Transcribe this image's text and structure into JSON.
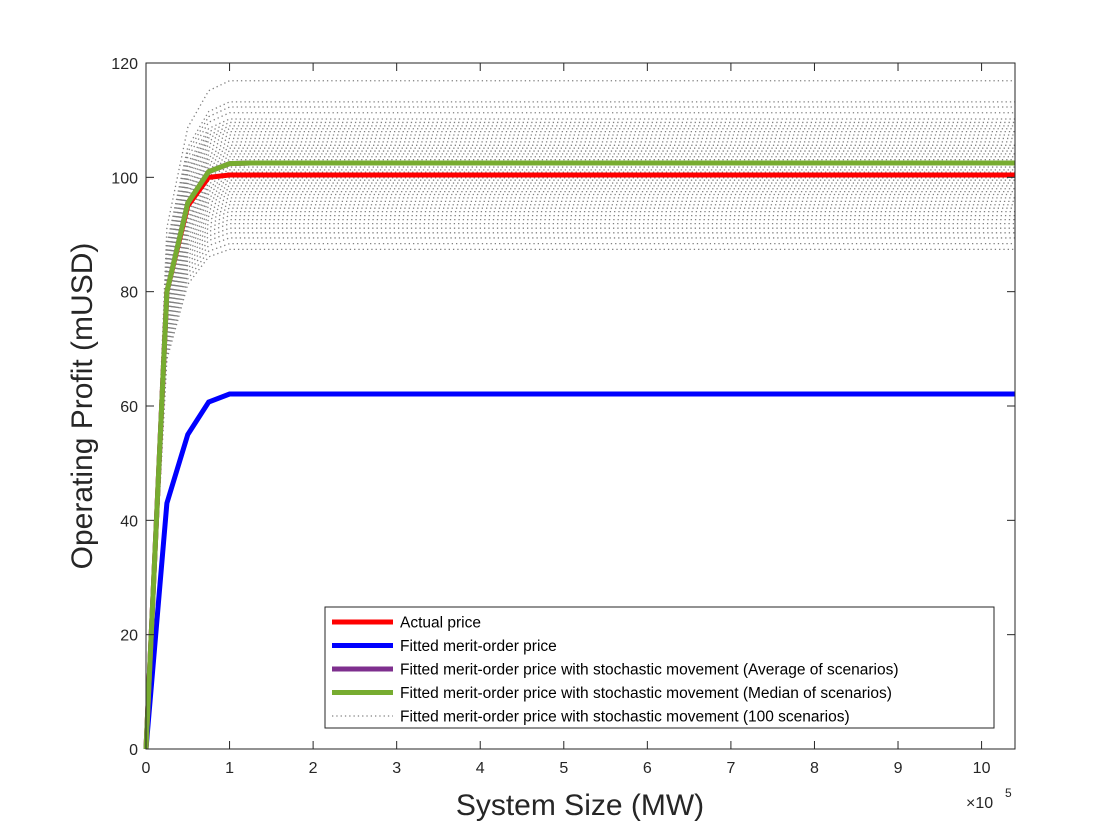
{
  "chart_data": {
    "type": "line",
    "xlabel": "System Size (MW)",
    "ylabel": "Operating Profit (mUSD)",
    "x_exponent_label": "×10",
    "x_exponent_power": "5",
    "xlim": [
      0,
      10.4
    ],
    "ylim": [
      0,
      120
    ],
    "x_unit_multiplier": 100000,
    "xticks": [
      0,
      1,
      2,
      3,
      4,
      5,
      6,
      7,
      8,
      9,
      10
    ],
    "yticks": [
      0,
      20,
      40,
      60,
      80,
      100,
      120
    ],
    "grid": false,
    "legend_position": "bottom-right",
    "colors": {
      "actual": "#ff0000",
      "fitted": "#0000ff",
      "average": "#7e2f8e",
      "median": "#77ac30",
      "scenarios": "#808080",
      "axes": "#262626"
    },
    "legend": [
      {
        "label": "Actual price",
        "style": "solid",
        "color": "#ff0000"
      },
      {
        "label": "Fitted merit-order price",
        "style": "solid",
        "color": "#0000ff"
      },
      {
        "label": "Fitted merit-order price with stochastic movement (Average of scenarios)",
        "style": "solid",
        "color": "#7e2f8e"
      },
      {
        "label": "Fitted merit-order price with stochastic movement (Median of scenarios)",
        "style": "solid",
        "color": "#77ac30"
      },
      {
        "label": "Fitted merit-order price with stochastic movement (100 scenarios)",
        "style": "dotted",
        "color": "#808080"
      }
    ],
    "x": [
      0,
      0.25,
      0.5,
      0.75,
      1.0,
      1.25,
      10.4
    ],
    "series": [
      {
        "name": "Actual price",
        "values": [
          0,
          80,
          95,
          100,
          100.4,
          100.4,
          100.4
        ]
      },
      {
        "name": "Fitted merit-order price",
        "values": [
          0,
          43,
          55,
          60.7,
          62.1,
          62.1,
          62.1
        ]
      },
      {
        "name": "Fitted merit-order price with stochastic movement (Average of scenarios)",
        "values": [
          0,
          80,
          95.5,
          101,
          102.4,
          102.5,
          102.5
        ]
      },
      {
        "name": "Fitted merit-order price with stochastic movement (Median of scenarios)",
        "values": [
          0,
          80,
          95.5,
          101,
          102.4,
          102.5,
          102.5
        ]
      }
    ],
    "scenario_plateaus": [
      116.9,
      113.2,
      112.3,
      111.3,
      110.2,
      109.6,
      109.0,
      108.5,
      108.0,
      107.4,
      106.8,
      106.2,
      105.6,
      105.1,
      104.6,
      104.1,
      103.6,
      103.1,
      102.7,
      102.2,
      101.8,
      101.3,
      100.9,
      100.4,
      99.9,
      99.5,
      99.0,
      98.5,
      98.0,
      97.5,
      97.0,
      96.4,
      95.8,
      95.2,
      94.6,
      94.0,
      93.3,
      92.6,
      91.9,
      91.1,
      90.3,
      89.4,
      88.4,
      87.4
    ],
    "scenario_shape": [
      0,
      0.78,
      0.93,
      0.985,
      1.0,
      1.0,
      1.0
    ]
  }
}
